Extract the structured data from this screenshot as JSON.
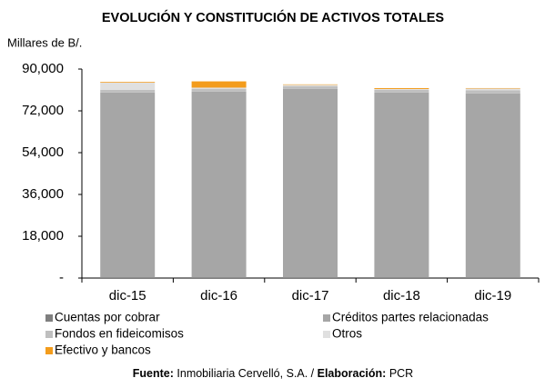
{
  "chart_data": {
    "type": "stacked_bar",
    "title": "EVOLUCIÓN Y CONSTITUCIÓN DE ACTIVOS TOTALES",
    "y_axis_label": "Millares de B/.",
    "categories": [
      "dic-15",
      "dic-16",
      "dic-17",
      "dic-18",
      "dic-19"
    ],
    "series": [
      {
        "name": "Cuentas por cobrar",
        "color": "#7f7f7f",
        "values": [
          100,
          100,
          100,
          100,
          100
        ]
      },
      {
        "name": "Créditos partes relacionadas",
        "color": "#a6a6a6",
        "values": [
          79800,
          80200,
          81400,
          79800,
          79400
        ]
      },
      {
        "name": "Fondos en fideicomisos",
        "color": "#bfbfbf",
        "values": [
          1200,
          1200,
          1100,
          1100,
          1300
        ]
      },
      {
        "name": "Otros",
        "color": "#e0e0e0",
        "values": [
          3100,
          500,
          600,
          400,
          800
        ]
      },
      {
        "name": "Efectivo y bancos",
        "color": "#f39c1c",
        "values": [
          300,
          2700,
          200,
          400,
          200
        ]
      }
    ],
    "ylim": [
      0,
      90000
    ],
    "yticks": [
      {
        "value": 0,
        "label": "-"
      },
      {
        "value": 18000,
        "label": "18,000"
      },
      {
        "value": 36000,
        "label": "36,000"
      },
      {
        "value": 54000,
        "label": "54,000"
      },
      {
        "value": 72000,
        "label": "72,000"
      },
      {
        "value": 90000,
        "label": "90,000"
      }
    ],
    "grid": false,
    "footer": {
      "source_label": "Fuente:",
      "source": " Inmobiliaria Cervelló, S.A. / ",
      "elaboration_label": "Elaboración:",
      "elaboration": " PCR"
    }
  }
}
